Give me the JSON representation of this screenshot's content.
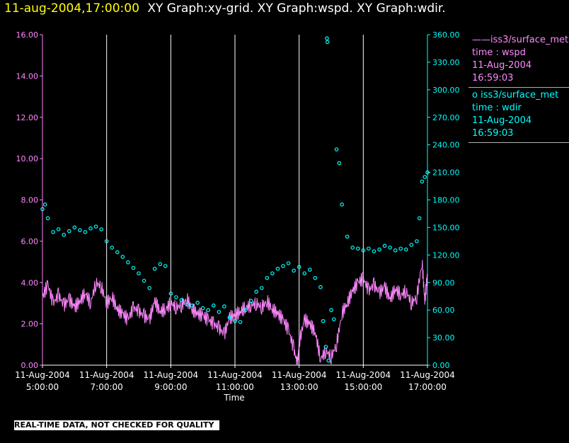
{
  "header": {
    "timestamp": "11-aug-2004,17:00:00",
    "graph_titles": "XY Graph:xy-grid.  XY Graph:wspd.  XY Graph:wdir."
  },
  "legend": {
    "wspd": {
      "marker": "——",
      "source": "iss3/surface_met",
      "var": "time : wspd",
      "date": "11-Aug-2004",
      "time": "16:59:03"
    },
    "wdir": {
      "marker": "o",
      "source": "iss3/surface_met",
      "var": "time : wdir",
      "date": "11-Aug-2004",
      "time": "16:59:03"
    }
  },
  "disclaimer": "REAL-TIME DATA, NOT CHECKED FOR QUALITY",
  "colors": {
    "wspd": "#ff88ff",
    "wdir": "#00ffff",
    "grid": "#ffffff",
    "header_stamp": "#ffff00"
  },
  "chart_data": {
    "type": "line",
    "xlabel": "Time",
    "x_range": [
      "11-Aug-2004 05:00:00",
      "11-Aug-2004 17:00:00"
    ],
    "x_ticks": [
      {
        "date": "11-Aug-2004",
        "time": "5:00:00",
        "hour": 5
      },
      {
        "date": "11-Aug-2004",
        "time": "7:00:00",
        "hour": 7
      },
      {
        "date": "11-Aug-2004",
        "time": "9:00:00",
        "hour": 9
      },
      {
        "date": "11-Aug-2004",
        "time": "11:00:00",
        "hour": 11
      },
      {
        "date": "11-Aug-2004",
        "time": "13:00:00",
        "hour": 13
      },
      {
        "date": "11-Aug-2004",
        "time": "15:00:00",
        "hour": 15
      },
      {
        "date": "11-Aug-2004",
        "time": "17:00:00",
        "hour": 17
      }
    ],
    "grid": "vertical lines at x ticks",
    "y_left": {
      "range": [
        0,
        16
      ],
      "ticks": [
        "0.00",
        "2.00",
        "4.00",
        "6.00",
        "8.00",
        "10.00",
        "12.00",
        "14.00",
        "16.00"
      ]
    },
    "y_right": {
      "range": [
        0,
        360
      ],
      "ticks": [
        "0.00",
        "30.00",
        "60.00",
        "90.00",
        "120.00",
        "150.00",
        "180.00",
        "210.00",
        "240.00",
        "270.00",
        "300.00",
        "330.00",
        "360.00"
      ]
    },
    "series": [
      {
        "name": "iss3/surface_met time : wspd",
        "axis": "left",
        "style": "line",
        "points": [
          [
            "05:00",
            3.3
          ],
          [
            "05:10",
            3.9
          ],
          [
            "05:20",
            3.0
          ],
          [
            "05:30",
            3.4
          ],
          [
            "05:40",
            2.9
          ],
          [
            "05:50",
            3.2
          ],
          [
            "06:00",
            2.8
          ],
          [
            "06:10",
            3.1
          ],
          [
            "06:20",
            3.5
          ],
          [
            "06:30",
            3.0
          ],
          [
            "06:40",
            4.0
          ],
          [
            "06:50",
            3.8
          ],
          [
            "07:00",
            3.0
          ],
          [
            "07:10",
            3.3
          ],
          [
            "07:20",
            2.7
          ],
          [
            "07:30",
            2.5
          ],
          [
            "07:40",
            2.2
          ],
          [
            "07:50",
            2.8
          ],
          [
            "08:00",
            2.6
          ],
          [
            "08:10",
            2.4
          ],
          [
            "08:20",
            2.2
          ],
          [
            "08:30",
            3.1
          ],
          [
            "08:40",
            2.6
          ],
          [
            "08:50",
            2.7
          ],
          [
            "09:00",
            3.0
          ],
          [
            "09:10",
            2.8
          ],
          [
            "09:20",
            2.9
          ],
          [
            "09:30",
            3.2
          ],
          [
            "09:40",
            2.7
          ],
          [
            "09:50",
            2.5
          ],
          [
            "10:00",
            2.4
          ],
          [
            "10:10",
            2.2
          ],
          [
            "10:20",
            2.0
          ],
          [
            "10:30",
            1.8
          ],
          [
            "10:40",
            1.5
          ],
          [
            "10:50",
            2.3
          ],
          [
            "11:00",
            2.4
          ],
          [
            "11:10",
            2.6
          ],
          [
            "11:20",
            2.8
          ],
          [
            "11:30",
            2.9
          ],
          [
            "11:40",
            3.0
          ],
          [
            "11:50",
            2.8
          ],
          [
            "12:00",
            3.1
          ],
          [
            "12:10",
            2.7
          ],
          [
            "12:20",
            2.5
          ],
          [
            "12:30",
            2.2
          ],
          [
            "12:40",
            1.7
          ],
          [
            "12:50",
            0.8
          ],
          [
            "12:57",
            0.0
          ],
          [
            "13:00",
            1.1
          ],
          [
            "13:10",
            2.2
          ],
          [
            "13:20",
            2.0
          ],
          [
            "13:30",
            1.6
          ],
          [
            "13:40",
            0.3
          ],
          [
            "13:50",
            0.7
          ],
          [
            "14:00",
            0.4
          ],
          [
            "14:10",
            1.0
          ],
          [
            "14:20",
            2.5
          ],
          [
            "14:30",
            3.0
          ],
          [
            "14:40",
            3.6
          ],
          [
            "14:50",
            4.0
          ],
          [
            "15:00",
            4.2
          ],
          [
            "15:10",
            3.6
          ],
          [
            "15:20",
            3.9
          ],
          [
            "15:30",
            3.5
          ],
          [
            "15:40",
            3.8
          ],
          [
            "15:50",
            3.2
          ],
          [
            "16:00",
            3.7
          ],
          [
            "16:10",
            3.4
          ],
          [
            "16:20",
            3.6
          ],
          [
            "16:30",
            3.0
          ],
          [
            "16:40",
            3.3
          ],
          [
            "16:50",
            5.0
          ],
          [
            "16:55",
            3.1
          ],
          [
            "17:00",
            4.4
          ]
        ]
      },
      {
        "name": "iss3/surface_met time : wdir",
        "axis": "right",
        "style": "circles",
        "points": [
          [
            "05:00",
            170
          ],
          [
            "05:05",
            175
          ],
          [
            "05:10",
            160
          ],
          [
            "05:20",
            145
          ],
          [
            "05:30",
            148
          ],
          [
            "05:40",
            142
          ],
          [
            "05:50",
            146
          ],
          [
            "06:00",
            150
          ],
          [
            "06:10",
            147
          ],
          [
            "06:20",
            145
          ],
          [
            "06:30",
            149
          ],
          [
            "06:40",
            151
          ],
          [
            "06:50",
            148
          ],
          [
            "07:00",
            135
          ],
          [
            "07:10",
            128
          ],
          [
            "07:20",
            123
          ],
          [
            "07:30",
            118
          ],
          [
            "07:40",
            112
          ],
          [
            "07:50",
            106
          ],
          [
            "08:00",
            100
          ],
          [
            "08:10",
            92
          ],
          [
            "08:20",
            84
          ],
          [
            "08:30",
            105
          ],
          [
            "08:40",
            110
          ],
          [
            "08:50",
            108
          ],
          [
            "09:00",
            78
          ],
          [
            "09:10",
            74
          ],
          [
            "09:20",
            71
          ],
          [
            "09:30",
            66
          ],
          [
            "09:40",
            65
          ],
          [
            "09:50",
            68
          ],
          [
            "10:00",
            62
          ],
          [
            "10:10",
            60
          ],
          [
            "10:20",
            65
          ],
          [
            "10:30",
            58
          ],
          [
            "10:40",
            64
          ],
          [
            "10:50",
            52
          ],
          [
            "11:00",
            48
          ],
          [
            "11:10",
            47
          ],
          [
            "11:20",
            60
          ],
          [
            "11:30",
            70
          ],
          [
            "11:40",
            80
          ],
          [
            "11:50",
            84
          ],
          [
            "12:00",
            95
          ],
          [
            "12:10",
            100
          ],
          [
            "12:20",
            105
          ],
          [
            "12:30",
            108
          ],
          [
            "12:40",
            111
          ],
          [
            "12:50",
            103
          ],
          [
            "13:00",
            107
          ],
          [
            "13:10",
            100
          ],
          [
            "13:20",
            104
          ],
          [
            "13:30",
            95
          ],
          [
            "13:40",
            85
          ],
          [
            "13:45",
            48
          ],
          [
            "13:50",
            20
          ],
          [
            "13:55",
            5
          ],
          [
            "14:00",
            60
          ],
          [
            "14:05",
            50
          ],
          [
            "14:10",
            235
          ],
          [
            "14:15",
            220
          ],
          [
            "14:20",
            175
          ],
          [
            "14:30",
            140
          ],
          [
            "14:40",
            128
          ],
          [
            "14:50",
            127
          ],
          [
            "15:00",
            125
          ],
          [
            "15:10",
            127
          ],
          [
            "15:20",
            124
          ],
          [
            "15:30",
            126
          ],
          [
            "15:40",
            130
          ],
          [
            "15:50",
            128
          ],
          [
            "16:00",
            125
          ],
          [
            "16:10",
            127
          ],
          [
            "16:20",
            126
          ],
          [
            "16:30",
            131
          ],
          [
            "16:40",
            135
          ],
          [
            "16:45",
            160
          ],
          [
            "16:50",
            200
          ],
          [
            "16:55",
            205
          ],
          [
            "17:00",
            210
          ],
          [
            "13:52",
            356
          ],
          [
            "13:53",
            352
          ]
        ]
      }
    ]
  }
}
